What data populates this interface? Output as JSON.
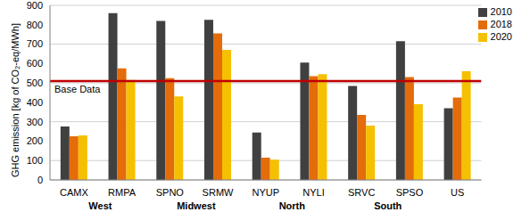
{
  "chart_data": {
    "type": "bar",
    "y_label": "GHG emission [kg of CO₂-eq/MWh]",
    "categories": [
      "CAMX",
      "RMPA",
      "SPNO",
      "SRMW",
      "NYUP",
      "NYLI",
      "SRVC",
      "SPSO",
      "US"
    ],
    "groups": [
      {
        "label": "West",
        "categories": [
          "CAMX",
          "RMPA"
        ]
      },
      {
        "label": "Midwest",
        "categories": [
          "SPNO",
          "SRMW"
        ]
      },
      {
        "label": "North",
        "categories": [
          "NYUP",
          "NYLI"
        ]
      },
      {
        "label": "South",
        "categories": [
          "SRVC",
          "SPSO"
        ]
      }
    ],
    "series": [
      {
        "name": "2010",
        "color": "#404040",
        "values": [
          275,
          860,
          820,
          825,
          245,
          605,
          485,
          715,
          370
        ]
      },
      {
        "name": "2018",
        "color": "#e46c0a",
        "values": [
          225,
          575,
          525,
          755,
          115,
          535,
          335,
          530,
          425
        ]
      },
      {
        "name": "2020",
        "color": "#f5c000",
        "values": [
          230,
          515,
          430,
          670,
          105,
          545,
          280,
          390,
          560
        ]
      }
    ],
    "reference_lines": [
      {
        "value": 510,
        "label": "Base Data",
        "color": "#c00000"
      }
    ],
    "ylim": [
      0,
      900
    ],
    "yticks": [
      0,
      100,
      200,
      300,
      400,
      500,
      600,
      700,
      800,
      900
    ],
    "grid": true,
    "legend": "upper right"
  }
}
